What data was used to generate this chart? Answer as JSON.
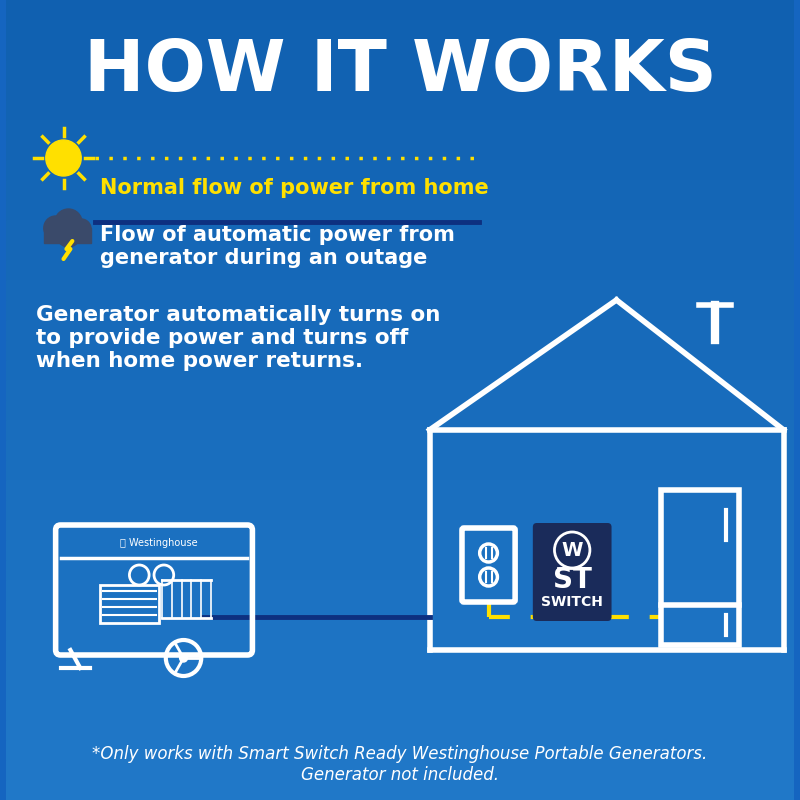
{
  "bg_color": "#1565C0",
  "bg_color_top": "#1565C0",
  "title": "HOW IT WORKS",
  "title_color": "#FFFFFF",
  "title_fontsize": 52,
  "legend1_text": "Normal flow of power from home",
  "legend1_color": "#FFE000",
  "legend2_text": "Flow of automatic power from\ngenerator during an outage",
  "legend2_color": "#FFFFFF",
  "body_text": "Generator automatically turns on\nto provide power and turns off\nwhen home power returns.",
  "body_color": "#FFFFFF",
  "footer_text": "*Only works with Smart Switch Ready Westinghouse Portable Generators.\nGenerator not included.",
  "footer_color": "#FFFFFF",
  "house_color": "#FFFFFF",
  "switch_bg": "#1A2B5A",
  "yellow": "#FFE000",
  "white": "#FFFFFF",
  "dark_blue": "#0D3080"
}
